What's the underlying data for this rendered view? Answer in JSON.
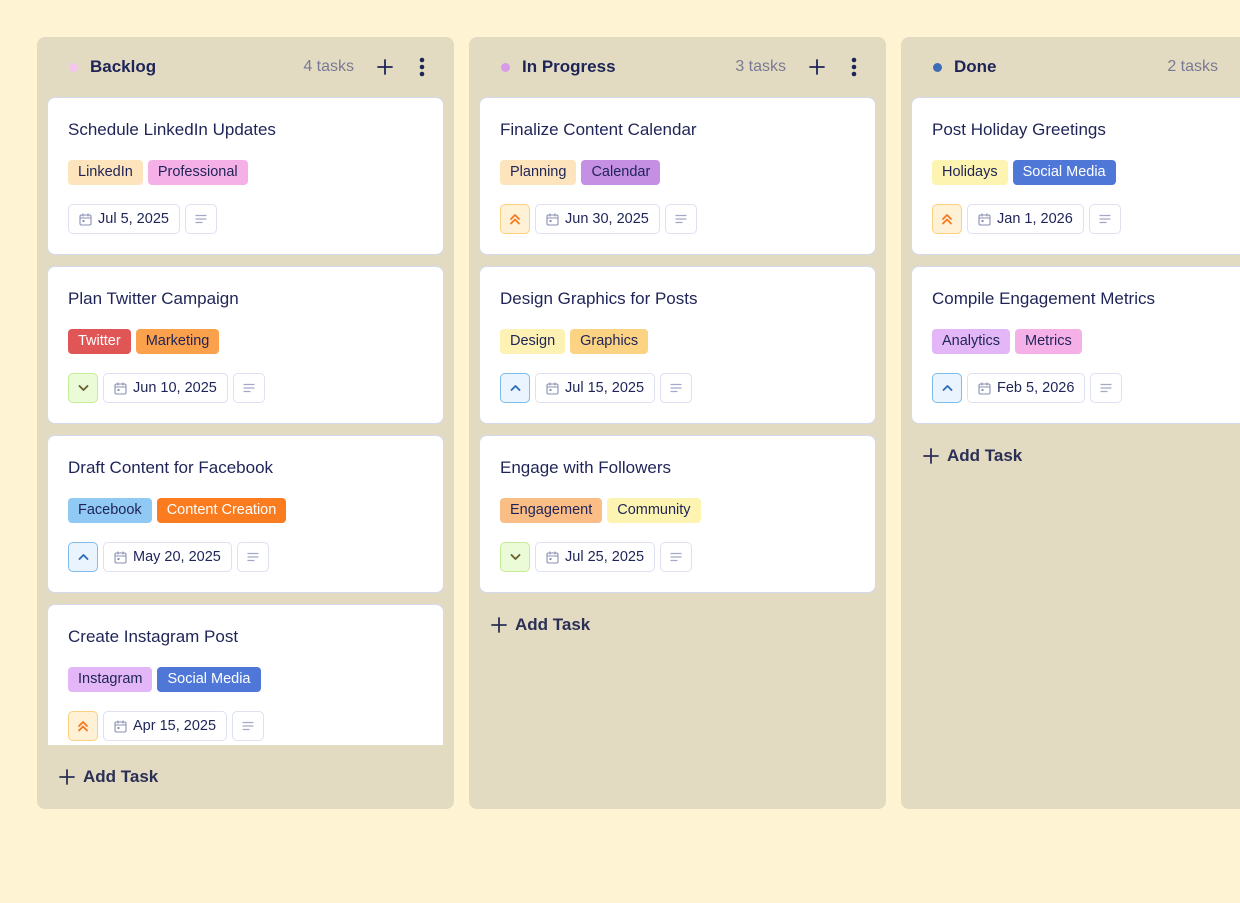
{
  "colors": {
    "page_bg": "#fef3d3",
    "column_bg": "#e3dbc1",
    "text_primary": "#1e2457",
    "text_muted": "#7a7a96"
  },
  "add_task_label": "Add Task",
  "columns": [
    {
      "title": "Backlog",
      "count": "4 tasks",
      "dot_color": "#f4c6ee",
      "show_actions": true,
      "cards": [
        {
          "title": "Schedule LinkedIn Updates",
          "tags": [
            {
              "label": "LinkedIn",
              "bg": "#fde4bd",
              "fg": "#1e2457"
            },
            {
              "label": "Professional",
              "bg": "#f5b1e7",
              "fg": "#1e2457"
            }
          ],
          "priority": null,
          "date": "Jul 5, 2025"
        },
        {
          "title": "Plan Twitter Campaign",
          "tags": [
            {
              "label": "Twitter",
              "bg": "#e05656",
              "fg": "#ffffff"
            },
            {
              "label": "Marketing",
              "bg": "#fba14b",
              "fg": "#1e2457"
            }
          ],
          "priority": "low",
          "date": "Jun 10, 2025"
        },
        {
          "title": "Draft Content for Facebook",
          "tags": [
            {
              "label": "Facebook",
              "bg": "#90c9f4",
              "fg": "#1e2457"
            },
            {
              "label": "Content Creation",
              "bg": "#fb7b1f",
              "fg": "#ffffff"
            }
          ],
          "priority": "medium",
          "date": "May 20, 2025"
        },
        {
          "title": "Create Instagram Post",
          "tags": [
            {
              "label": "Instagram",
              "bg": "#e3b6f7",
              "fg": "#1e2457"
            },
            {
              "label": "Social Media",
              "bg": "#4f77d8",
              "fg": "#ffffff"
            }
          ],
          "priority": "high",
          "date": "Apr 15, 2025"
        }
      ]
    },
    {
      "title": "In Progress",
      "count": "3 tasks",
      "dot_color": "#d89ae9",
      "show_actions": true,
      "cards": [
        {
          "title": "Finalize Content Calendar",
          "tags": [
            {
              "label": "Planning",
              "bg": "#fde4bd",
              "fg": "#1e2457"
            },
            {
              "label": "Calendar",
              "bg": "#c58fe4",
              "fg": "#1e2457"
            }
          ],
          "priority": "high",
          "date": "Jun 30, 2025"
        },
        {
          "title": "Design Graphics for Posts",
          "tags": [
            {
              "label": "Design",
              "bg": "#fdf1b3",
              "fg": "#1e2457"
            },
            {
              "label": "Graphics",
              "bg": "#fcd283",
              "fg": "#1e2457"
            }
          ],
          "priority": "medium",
          "date": "Jul 15, 2025"
        },
        {
          "title": "Engage with Followers",
          "tags": [
            {
              "label": "Engagement",
              "bg": "#fbbd86",
              "fg": "#1e2457"
            },
            {
              "label": "Community",
              "bg": "#fdf4b1",
              "fg": "#1e2457"
            }
          ],
          "priority": "low",
          "date": "Jul 25, 2025"
        }
      ]
    },
    {
      "title": "Done",
      "count": "2 tasks",
      "dot_color": "#3f6cb6",
      "show_actions": false,
      "cards": [
        {
          "title": "Post Holiday Greetings",
          "tags": [
            {
              "label": "Holidays",
              "bg": "#fdf4b1",
              "fg": "#1e2457"
            },
            {
              "label": "Social Media",
              "bg": "#4f77d8",
              "fg": "#ffffff"
            }
          ],
          "priority": "high",
          "date": "Jan 1, 2026"
        },
        {
          "title": "Compile Engagement Metrics",
          "tags": [
            {
              "label": "Analytics",
              "bg": "#e3b6f7",
              "fg": "#1e2457"
            },
            {
              "label": "Metrics",
              "bg": "#f5b1e7",
              "fg": "#1e2457"
            }
          ],
          "priority": "medium",
          "date": "Feb 5, 2026"
        }
      ]
    }
  ]
}
